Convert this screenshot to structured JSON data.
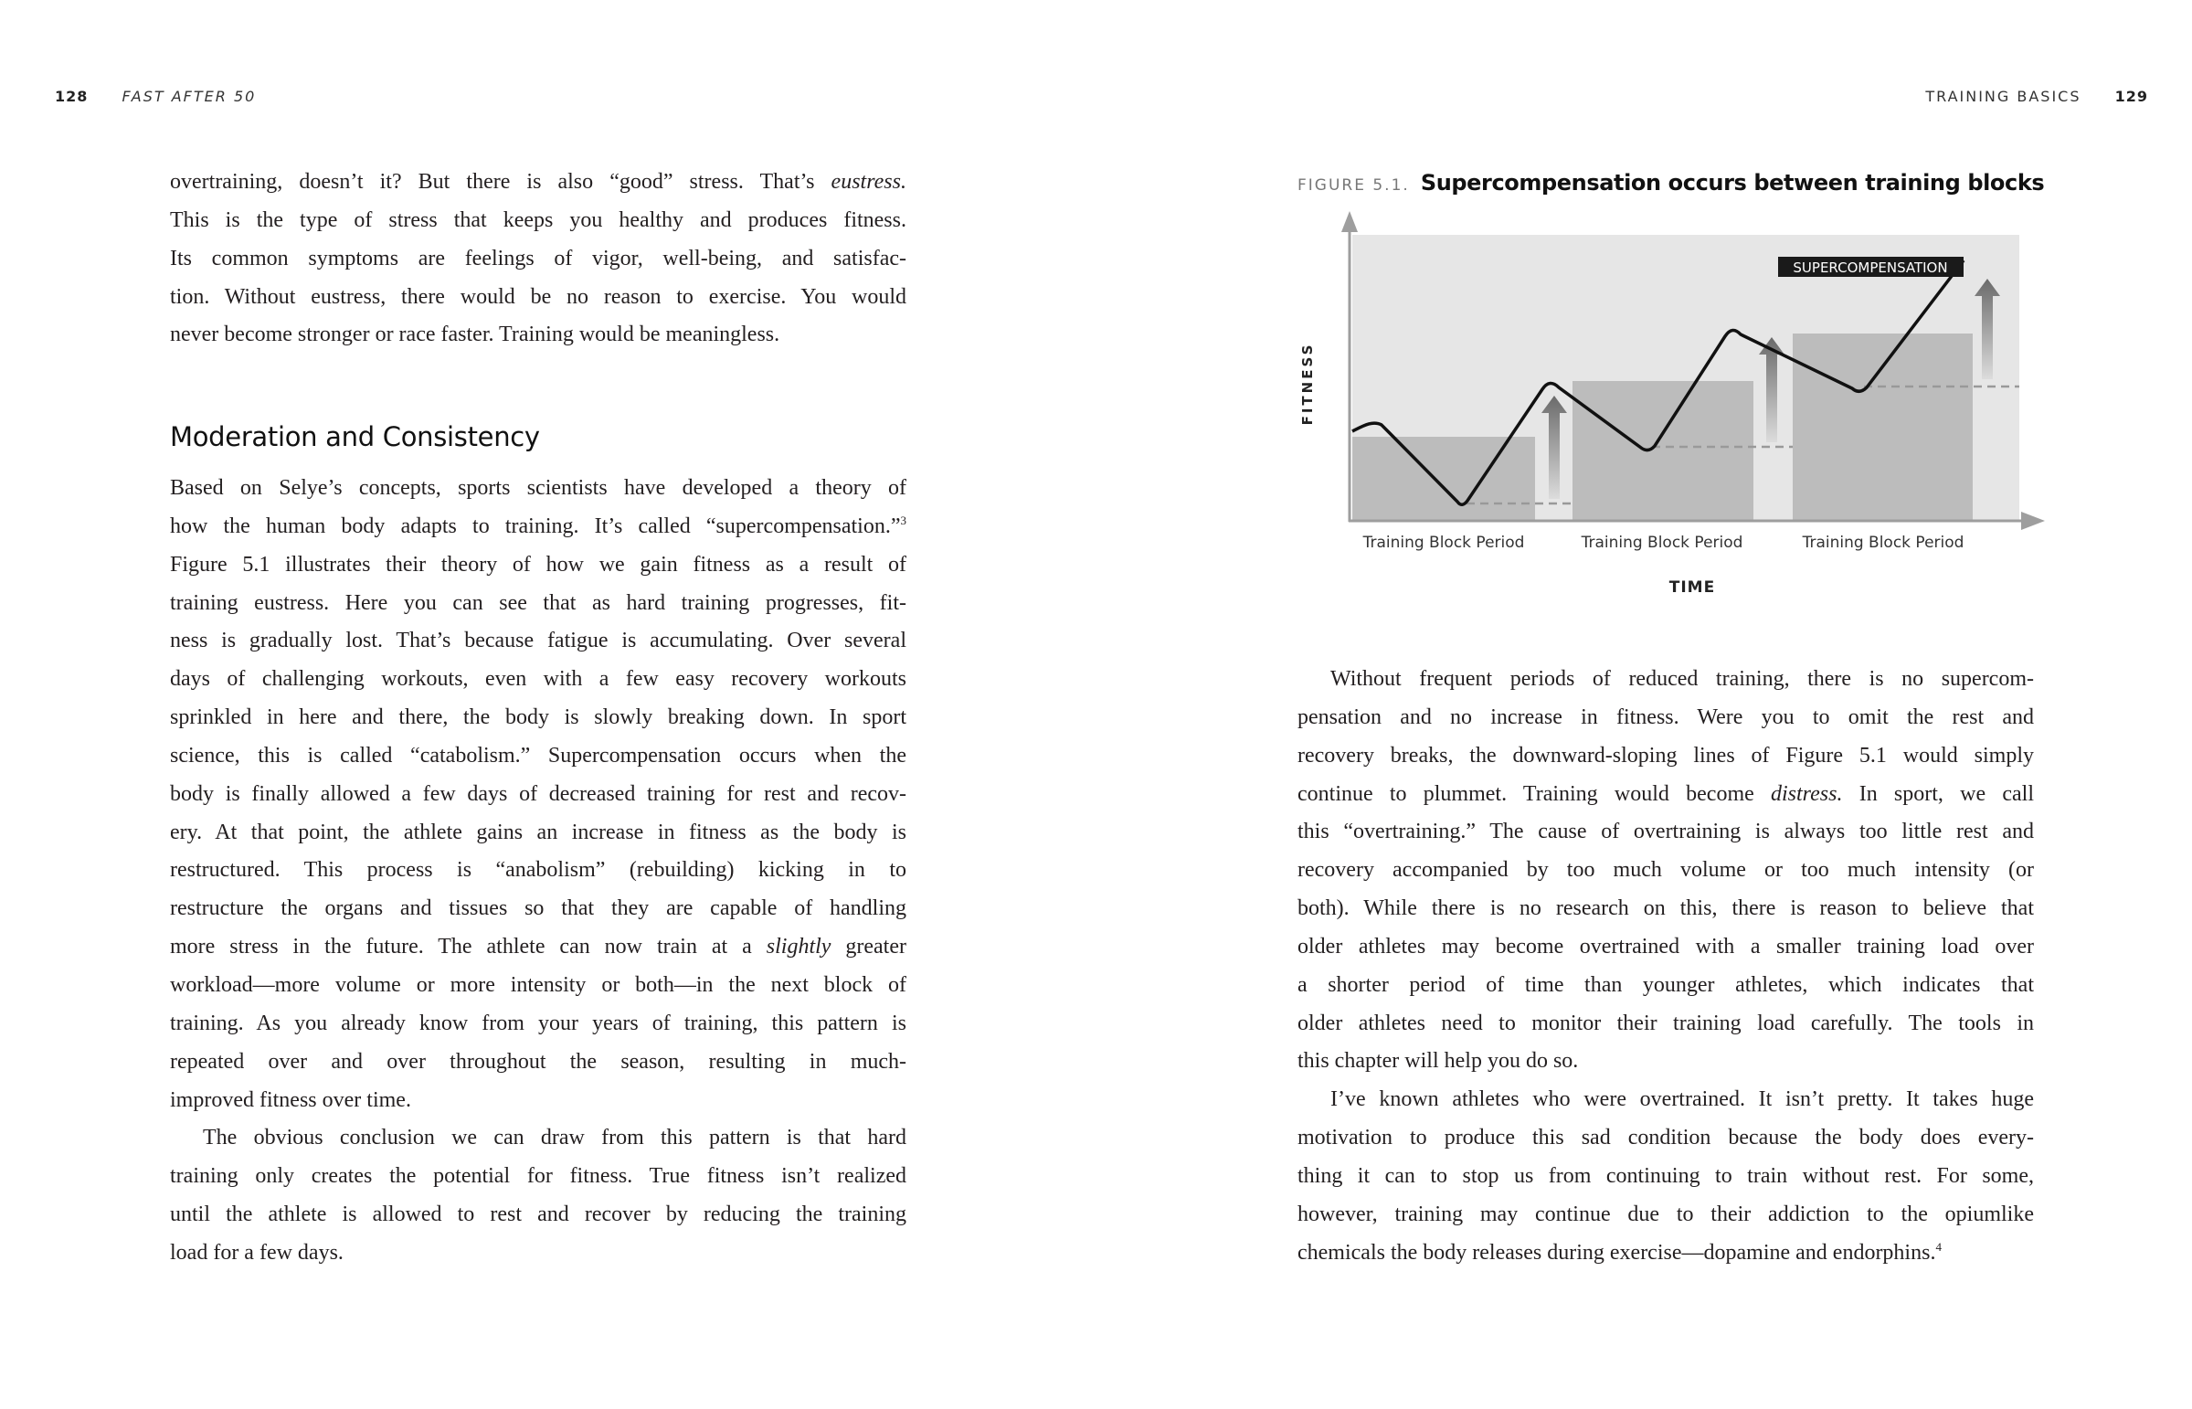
{
  "left_page": {
    "page_number": "128",
    "running_head": "FAST AFTER 50",
    "top_paragraph": [
      "overtraining, doesn’t it? But there is also “good” stress. That’s *eustress.*",
      "This is the type of stress that keeps you healthy and produces fitness.",
      "Its common symptoms are feelings of vigor, well-being, and satisfac-",
      "tion. Without eustress, there would be no reason to exercise. You would",
      "never become stronger or race faster. Training would be meaningless."
    ],
    "heading": "Moderation and Consistency",
    "paragraphs": [
      [
        "Based on Selye’s concepts, sports scientists have developed a theory of",
        "how the human body adapts to training. It’s called “supercompensation.”^3",
        "Figure 5.1 illustrates their theory of how we gain fitness as a result of",
        "training eustress. Here you can see that as hard training progresses, fit-",
        "ness is gradually lost. That’s because fatigue is accumulating. Over several",
        "days of challenging workouts, even with a few easy recovery workouts",
        "sprinkled in here and there, the body is slowly breaking down. In sport",
        "science, this is called “catabolism.” Supercompensation occurs when the",
        "body is finally allowed a few days of decreased training for rest and recov-",
        "ery. At that point, the athlete gains an increase in fitness as the body is",
        "restructured. This process is “anabolism” (rebuilding) kicking in to",
        "restructure the organs and tissues so that they are capable of handling",
        "more stress in the future. The athlete can now train at a *slightly* greater",
        "workload—more volume or more intensity or both—in the next block of",
        "training. As you already know from your years of training, this pattern is",
        "repeated over and over throughout the season, resulting in much-",
        "improved fitness over time."
      ],
      [
        "The obvious conclusion we can draw from this pattern is that hard",
        "training only creates the potential for fitness. True fitness isn’t realized",
        "until the athlete is allowed to rest and recover by reducing the training",
        "load for a few days."
      ]
    ]
  },
  "right_page": {
    "page_number": "129",
    "running_head": "TRAINING BASICS",
    "figure": {
      "label": "FIGURE 5.1.",
      "title": "Supercompensation occurs between training blocks",
      "y_axis_label": "FITNESS",
      "x_axis_label": "TIME",
      "block_labels": [
        "Training Block Period",
        "Training Block Period",
        "Training Block Period"
      ],
      "callout": "SUPERCOMPENSATION",
      "colors": {
        "plot_bg": "#e6e6e6",
        "block": "#bcbcbc",
        "axis": "#9e9e9e",
        "curve": "#111111",
        "callout_bg": "#1a1a1a"
      }
    },
    "paragraphs": [
      [
        "Without frequent periods of reduced training, there is no supercom-",
        "pensation and no increase in fitness. Were you to omit the rest and",
        "recovery breaks, the downward-sloping lines of Figure 5.1 would simply",
        "continue to plummet. Training would become *distress.* In sport, we call",
        "this “overtraining.” The cause of overtraining is always too little rest and",
        "recovery accompanied by too much volume or too much intensity (or",
        "both). While there is no research on this, there is reason to believe that",
        "older athletes may become overtrained with a smaller training load over",
        "a shorter period of time than younger athletes, which indicates that",
        "older athletes need to monitor their training load carefully. The tools in",
        "this chapter will help you do so."
      ],
      [
        "I’ve known athletes who were overtrained. It isn’t pretty. It takes huge",
        "motivation to produce this sad condition because the body does every-",
        "thing it can to stop us from continuing to train without rest. For some,",
        "however, training may continue due to their addiction to the opiumlike",
        "chemicals the body releases during exercise—dopamine and endorphins.^4"
      ]
    ]
  }
}
